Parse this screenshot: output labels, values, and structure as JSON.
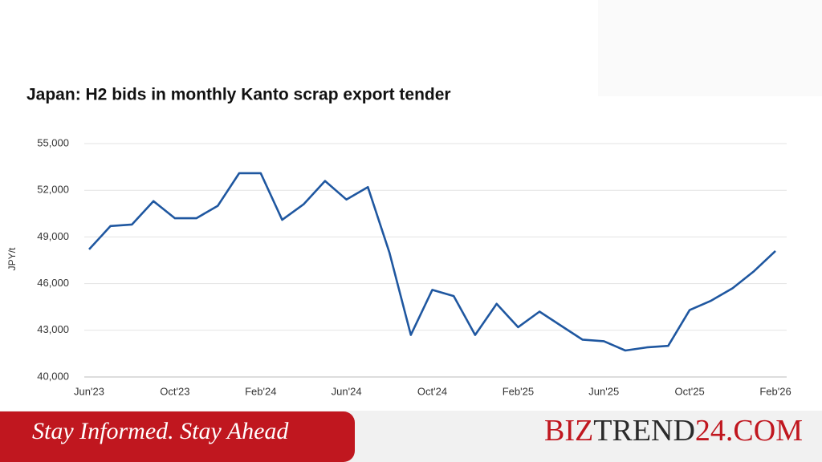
{
  "chart_data": {
    "type": "line",
    "title": "Japan: H2 bids in monthly Kanto scrap export tender",
    "y_label": "JPY/t",
    "categories": [
      "Jun'23",
      null,
      null,
      null,
      "Oct'23",
      null,
      null,
      null,
      "Feb'24",
      null,
      null,
      null,
      "Jun'24",
      null,
      null,
      null,
      "Oct'24",
      null,
      null,
      null,
      "Feb'25",
      null,
      null,
      null,
      "Jun'25",
      null,
      null,
      null,
      "Oct'25",
      null,
      null,
      null,
      "Feb'26"
    ],
    "series": [
      {
        "name": "H2 bids",
        "color": "#1f57a0",
        "values": [
          48200,
          49700,
          49800,
          51300,
          50200,
          50200,
          51000,
          53100,
          53100,
          50100,
          51100,
          52600,
          51400,
          52200,
          48000,
          42700,
          45600,
          45200,
          42700,
          44700,
          43200,
          44200,
          43300,
          42400,
          42300,
          41700,
          41900,
          42000,
          44300,
          44900,
          45700,
          46800,
          48100
        ]
      }
    ],
    "ylim": [
      40000,
      55000
    ],
    "yticks": [
      {
        "value": 40000,
        "label": "40,000"
      },
      {
        "value": 43000,
        "label": "43,000"
      },
      {
        "value": 46000,
        "label": "46,000"
      },
      {
        "value": 49000,
        "label": "49,000"
      },
      {
        "value": 52000,
        "label": "52,000"
      },
      {
        "value": 55000,
        "label": "55,000"
      }
    ],
    "grid": true
  },
  "banner": {
    "tagline": "Stay Informed. Stay Ahead",
    "brand": [
      "BIZ",
      "TREND",
      "24.COM"
    ]
  }
}
